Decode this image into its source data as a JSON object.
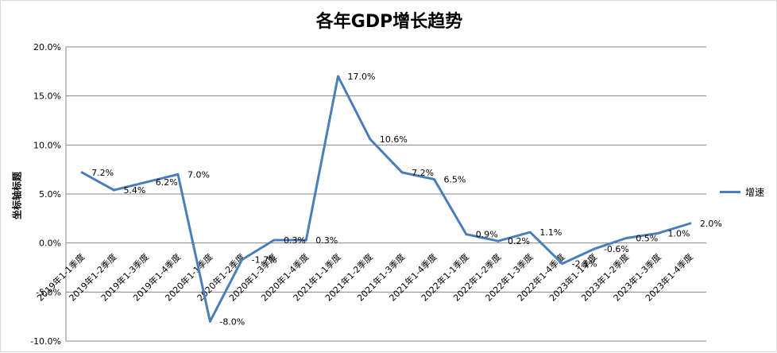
{
  "chart_data": {
    "type": "line",
    "title": "各年GDP增长趋势",
    "ylabel": "坐标轴标题",
    "xlabel": "",
    "ylim": [
      -10,
      20
    ],
    "ytick_step": 5,
    "yticks": [
      "-10.0%",
      "-5.0%",
      "0.0%",
      "5.0%",
      "10.0%",
      "15.0%",
      "20.0%"
    ],
    "grid": true,
    "legend_position": "right",
    "series_color": "#4a7ebb",
    "categories": [
      "2019年1-1季度",
      "2019年1-2季度",
      "2019年1-3季度",
      "2019年1-4季度",
      "2020年1-1季度",
      "2020年1-2季度",
      "2020年1-3季度",
      "2020年1-4季度",
      "2021年1-1季度",
      "2021年1-2季度",
      "2021年1-3季度",
      "2021年1-4季度",
      "2022年1-1季度",
      "2022年1-2季度",
      "2022年1-3季度",
      "2022年1-4季度",
      "2023年1-1季度",
      "2023年1-2季度",
      "2023年1-3季度",
      "2023年1-4季度"
    ],
    "series": [
      {
        "name": "增速",
        "values": [
          7.2,
          5.4,
          6.2,
          7.0,
          -8.0,
          -1.7,
          0.3,
          0.3,
          17.0,
          10.6,
          7.2,
          6.5,
          0.9,
          0.2,
          1.1,
          -2.1,
          -0.6,
          0.5,
          1.0,
          2.0
        ],
        "labels": [
          "7.2%",
          "5.4%",
          "6.2%",
          "7.0%",
          "-8.0%",
          "-1.7%",
          "0.3%",
          "0.3%",
          "17.0%",
          "10.6%",
          "7.2%",
          "6.5%",
          "0.9%",
          "0.2%",
          "1.1%",
          "-2.1%",
          "-0.6%",
          "0.5%",
          "1.0%",
          "2.0%"
        ]
      }
    ]
  }
}
